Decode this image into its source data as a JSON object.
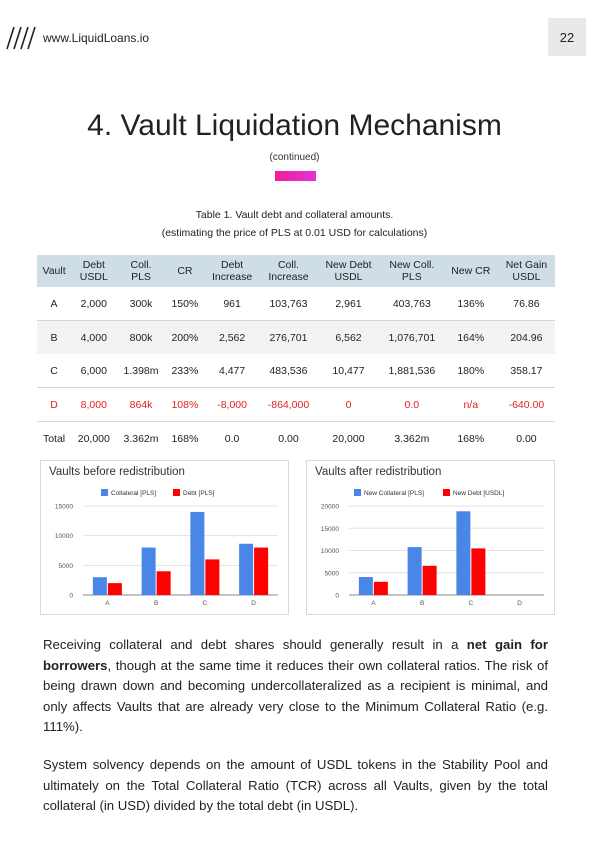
{
  "header": {
    "url": "www.LiquidLoans.io",
    "page_number": "22"
  },
  "title": "4. Vault Liquidation Mechanism",
  "subtitle": "(continued)",
  "table": {
    "caption_line1": "Table 1. Vault debt and collateral amounts.",
    "caption_line2": "(estimating the price of PLS at 0.01 USD for calculations)",
    "headers": [
      [
        "Vault"
      ],
      [
        "Debt",
        "USDL"
      ],
      [
        "Coll.",
        "PLS"
      ],
      [
        "CR"
      ],
      [
        "Debt",
        "Increase"
      ],
      [
        "Coll.",
        "Increase"
      ],
      [
        "New Debt",
        "USDL"
      ],
      [
        "New Coll.",
        "PLS"
      ],
      [
        "New CR"
      ],
      [
        "Net Gain",
        "USDL"
      ]
    ],
    "rows": [
      [
        "A",
        "2,000",
        "300k",
        "150%",
        "961",
        "103,763",
        "2,961",
        "403,763",
        "136%",
        "76.86"
      ],
      [
        "B",
        "4,000",
        "800k",
        "200%",
        "2,562",
        "276,701",
        "6,562",
        "1,076,701",
        "164%",
        "204.96"
      ],
      [
        "C",
        "6,000",
        "1.398m",
        "233%",
        "4,477",
        "483,536",
        "10,477",
        "1,881,536",
        "180%",
        "358.17"
      ],
      [
        "D",
        "8,000",
        "864k",
        "108%",
        "-8,000",
        "-864,000",
        "0",
        "0.0",
        "n/a",
        "-640.00"
      ],
      [
        "Total",
        "20,000",
        "3.362m",
        "168%",
        "0.0",
        "0.00",
        "20,000",
        "3.362m",
        "168%",
        "0.00"
      ]
    ]
  },
  "chart_data": [
    {
      "type": "bar",
      "title": "Vaults before redistribution",
      "categories": [
        "A",
        "B",
        "C",
        "D"
      ],
      "series": [
        {
          "name": "Collateral [PLS]",
          "values": [
            3000,
            8000,
            14000,
            8640
          ]
        },
        {
          "name": "Debt [PLS]",
          "values": [
            2000,
            4000,
            6000,
            8000
          ]
        }
      ],
      "ylim": [
        0,
        15000
      ],
      "yticks": [
        "15000",
        "10000",
        "5000",
        "0"
      ],
      "grid": true,
      "legend": "top",
      "colors": [
        "#4a86e8",
        "#ff0000"
      ]
    },
    {
      "type": "bar",
      "title": "Vaults after redistribution",
      "categories": [
        "A",
        "B",
        "C",
        "D"
      ],
      "series": [
        {
          "name": "New Collateral [PLS]",
          "values": [
            4038,
            10767,
            18815,
            0
          ]
        },
        {
          "name": "New Debt [USDL]",
          "values": [
            2961,
            6562,
            10477,
            0
          ]
        }
      ],
      "ylim": [
        0,
        20000
      ],
      "yticks": [
        "20000",
        "15000",
        "10000",
        "5000",
        "0"
      ],
      "grid": true,
      "legend": "top",
      "colors": [
        "#4a86e8",
        "#ff0000"
      ]
    }
  ],
  "paragraphs": {
    "p1_before": "Receiving collateral and debt shares should generally result in a ",
    "p1_bold": "net gain for borrowers",
    "p1_after": ", though at the same time it reduces their own collateral ratios. The risk of being drawn down and becoming undercollateralized as a recipient is minimal, and only affects Vaults that are already very close to the Minimum Collateral Ratio (e.g. 111%).",
    "p2": "System solvency depends on the amount of USDL tokens in the Stability Pool and ultimately on the Total Collateral Ratio (TCR) across all Vaults, given by the total collateral (in USD) divided by the total debt (in USDL)."
  }
}
